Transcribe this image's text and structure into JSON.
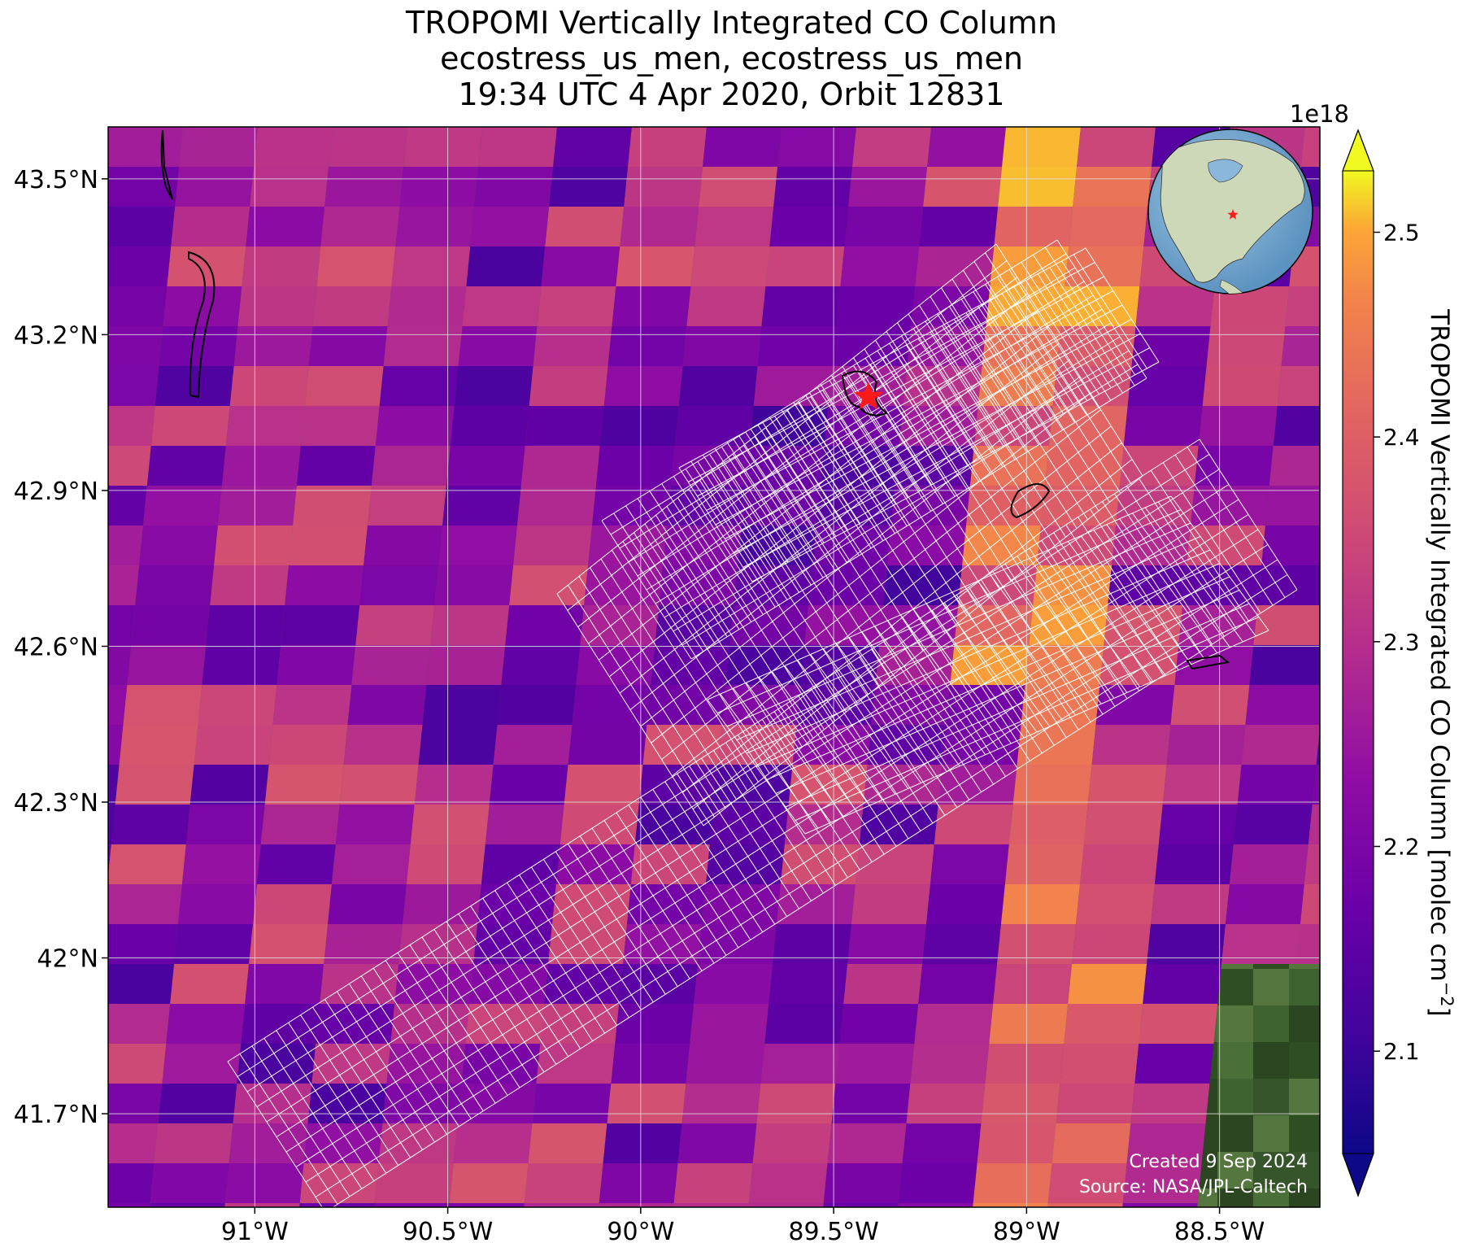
{
  "title": {
    "line1": "TROPOMI Vertically Integrated CO Column",
    "line2": "ecostress_us_men, ecostress_us_men",
    "line3": "19:34 UTC 4 Apr 2020, Orbit 12831"
  },
  "map": {
    "projection": "PlateCarree",
    "extent_lon": [
      -91.38,
      -88.24
    ],
    "extent_lat": [
      41.52,
      43.6
    ],
    "lat_ticks": [
      {
        "value": 43.5,
        "label": "43.5°N"
      },
      {
        "value": 43.2,
        "label": "43.2°N"
      },
      {
        "value": 42.9,
        "label": "42.9°N"
      },
      {
        "value": 42.6,
        "label": "42.6°N"
      },
      {
        "value": 42.3,
        "label": "42.3°N"
      },
      {
        "value": 42.0,
        "label": "42°N"
      },
      {
        "value": 41.7,
        "label": "41.7°N"
      }
    ],
    "lon_ticks": [
      {
        "value": -91.0,
        "label": "91°W"
      },
      {
        "value": -90.5,
        "label": "90.5°W"
      },
      {
        "value": -90.0,
        "label": "90°W"
      },
      {
        "value": -89.5,
        "label": "89.5°W"
      },
      {
        "value": -89.0,
        "label": "89°W"
      },
      {
        "value": -88.5,
        "label": "88.5°W"
      }
    ],
    "gridlines": true,
    "background": "satellite imagery (green farmland)",
    "target_site": {
      "lon": -89.41,
      "lat": 43.08,
      "marker": "red-star"
    },
    "overlay": "ECOSTRESS footprint grid (white outlines)",
    "credits": {
      "created": "Created 9 Sep 2024",
      "source": "Source: NASA/JPL-Caltech"
    }
  },
  "inset": {
    "type": "globe",
    "marker": "red-star",
    "location": "top-right"
  },
  "colorbar": {
    "label": "TROPOMI Vertically Integrated CO Column [molec cm",
    "label_sup": "−2",
    "label_end": "]",
    "scale_text": "1e18",
    "colormap": "plasma",
    "vmin": 2.05,
    "vmax": 2.53,
    "extend": "both",
    "ticks": [
      {
        "value": 2.1,
        "label": "2.1"
      },
      {
        "value": 2.2,
        "label": "2.2"
      },
      {
        "value": 2.3,
        "label": "2.3"
      },
      {
        "value": 2.4,
        "label": "2.4"
      },
      {
        "value": 2.5,
        "label": "2.5"
      }
    ]
  }
}
